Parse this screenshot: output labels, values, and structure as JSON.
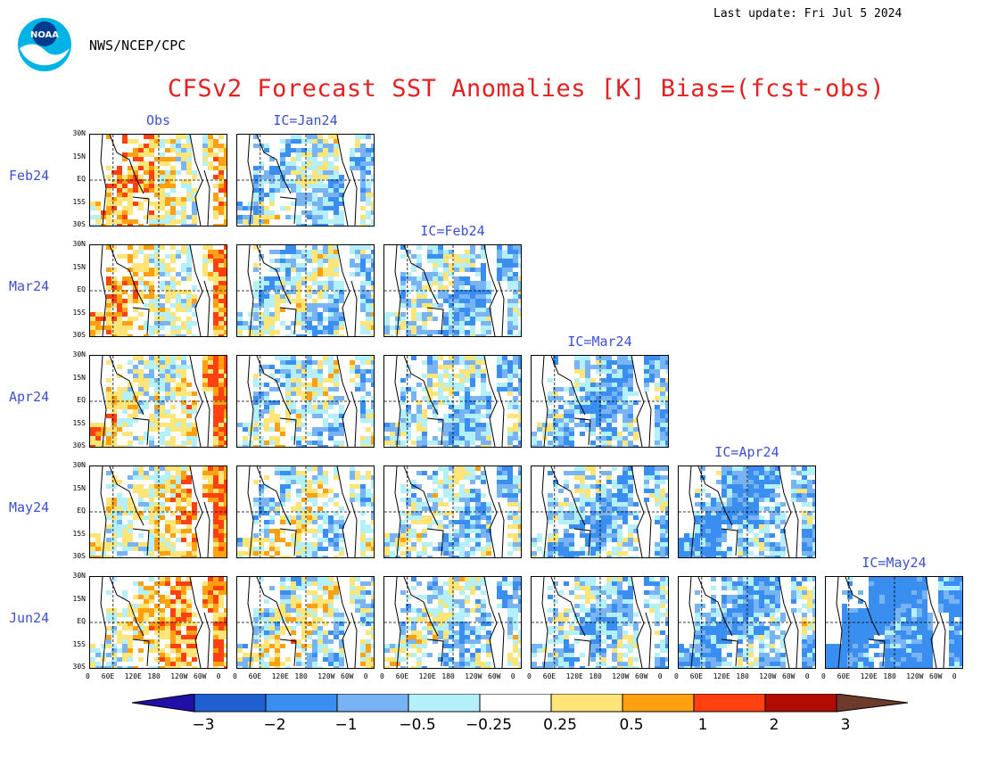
{
  "header": {
    "last_update": "Last update: Fri Jul  5 2024",
    "org": "NWS/NCEP/CPC",
    "title": "CFSv2 Forecast SST Anomalies [K] Bias=(fcst-obs)"
  },
  "logo_icon": "noaa-logo-icon",
  "chart_data": {
    "type": "heatmap",
    "title": "CFSv2 Forecast SST Anomalies [K] Bias=(fcst-obs)",
    "units": "K",
    "columns": [
      {
        "label": "Obs",
        "index": 0
      },
      {
        "label": "IC=Jan24",
        "index": 1
      },
      {
        "label": "IC=Feb24",
        "index": 2
      },
      {
        "label": "IC=Mar24",
        "index": 3
      },
      {
        "label": "IC=Apr24",
        "index": 4
      },
      {
        "label": "IC=May24",
        "index": 5
      }
    ],
    "rows": [
      {
        "label": "Feb24",
        "panels": 2
      },
      {
        "label": "Mar24",
        "panels": 3
      },
      {
        "label": "Apr24",
        "panels": 4
      },
      {
        "label": "May24",
        "panels": 5
      },
      {
        "label": "Jun24",
        "panels": 6
      }
    ],
    "y_ticks": [
      "30N",
      "15N",
      "EQ",
      "15S",
      "30S"
    ],
    "x_ticks": [
      "0",
      "60E",
      "120E",
      "180",
      "120W",
      "60W",
      "0"
    ],
    "colorbar": {
      "ticks": [
        "−3",
        "−2",
        "−1",
        "−0.5",
        "−0.25",
        "0.25",
        "0.5",
        "1",
        "2",
        "3"
      ],
      "colors": [
        "#2010a8",
        "#1f5fd0",
        "#3a8ef0",
        "#78b4f4",
        "#b4f0fa",
        "#ffffff",
        "#ffe478",
        "#ffa010",
        "#ff4010",
        "#b00c00",
        "#6e3a2c"
      ]
    }
  }
}
